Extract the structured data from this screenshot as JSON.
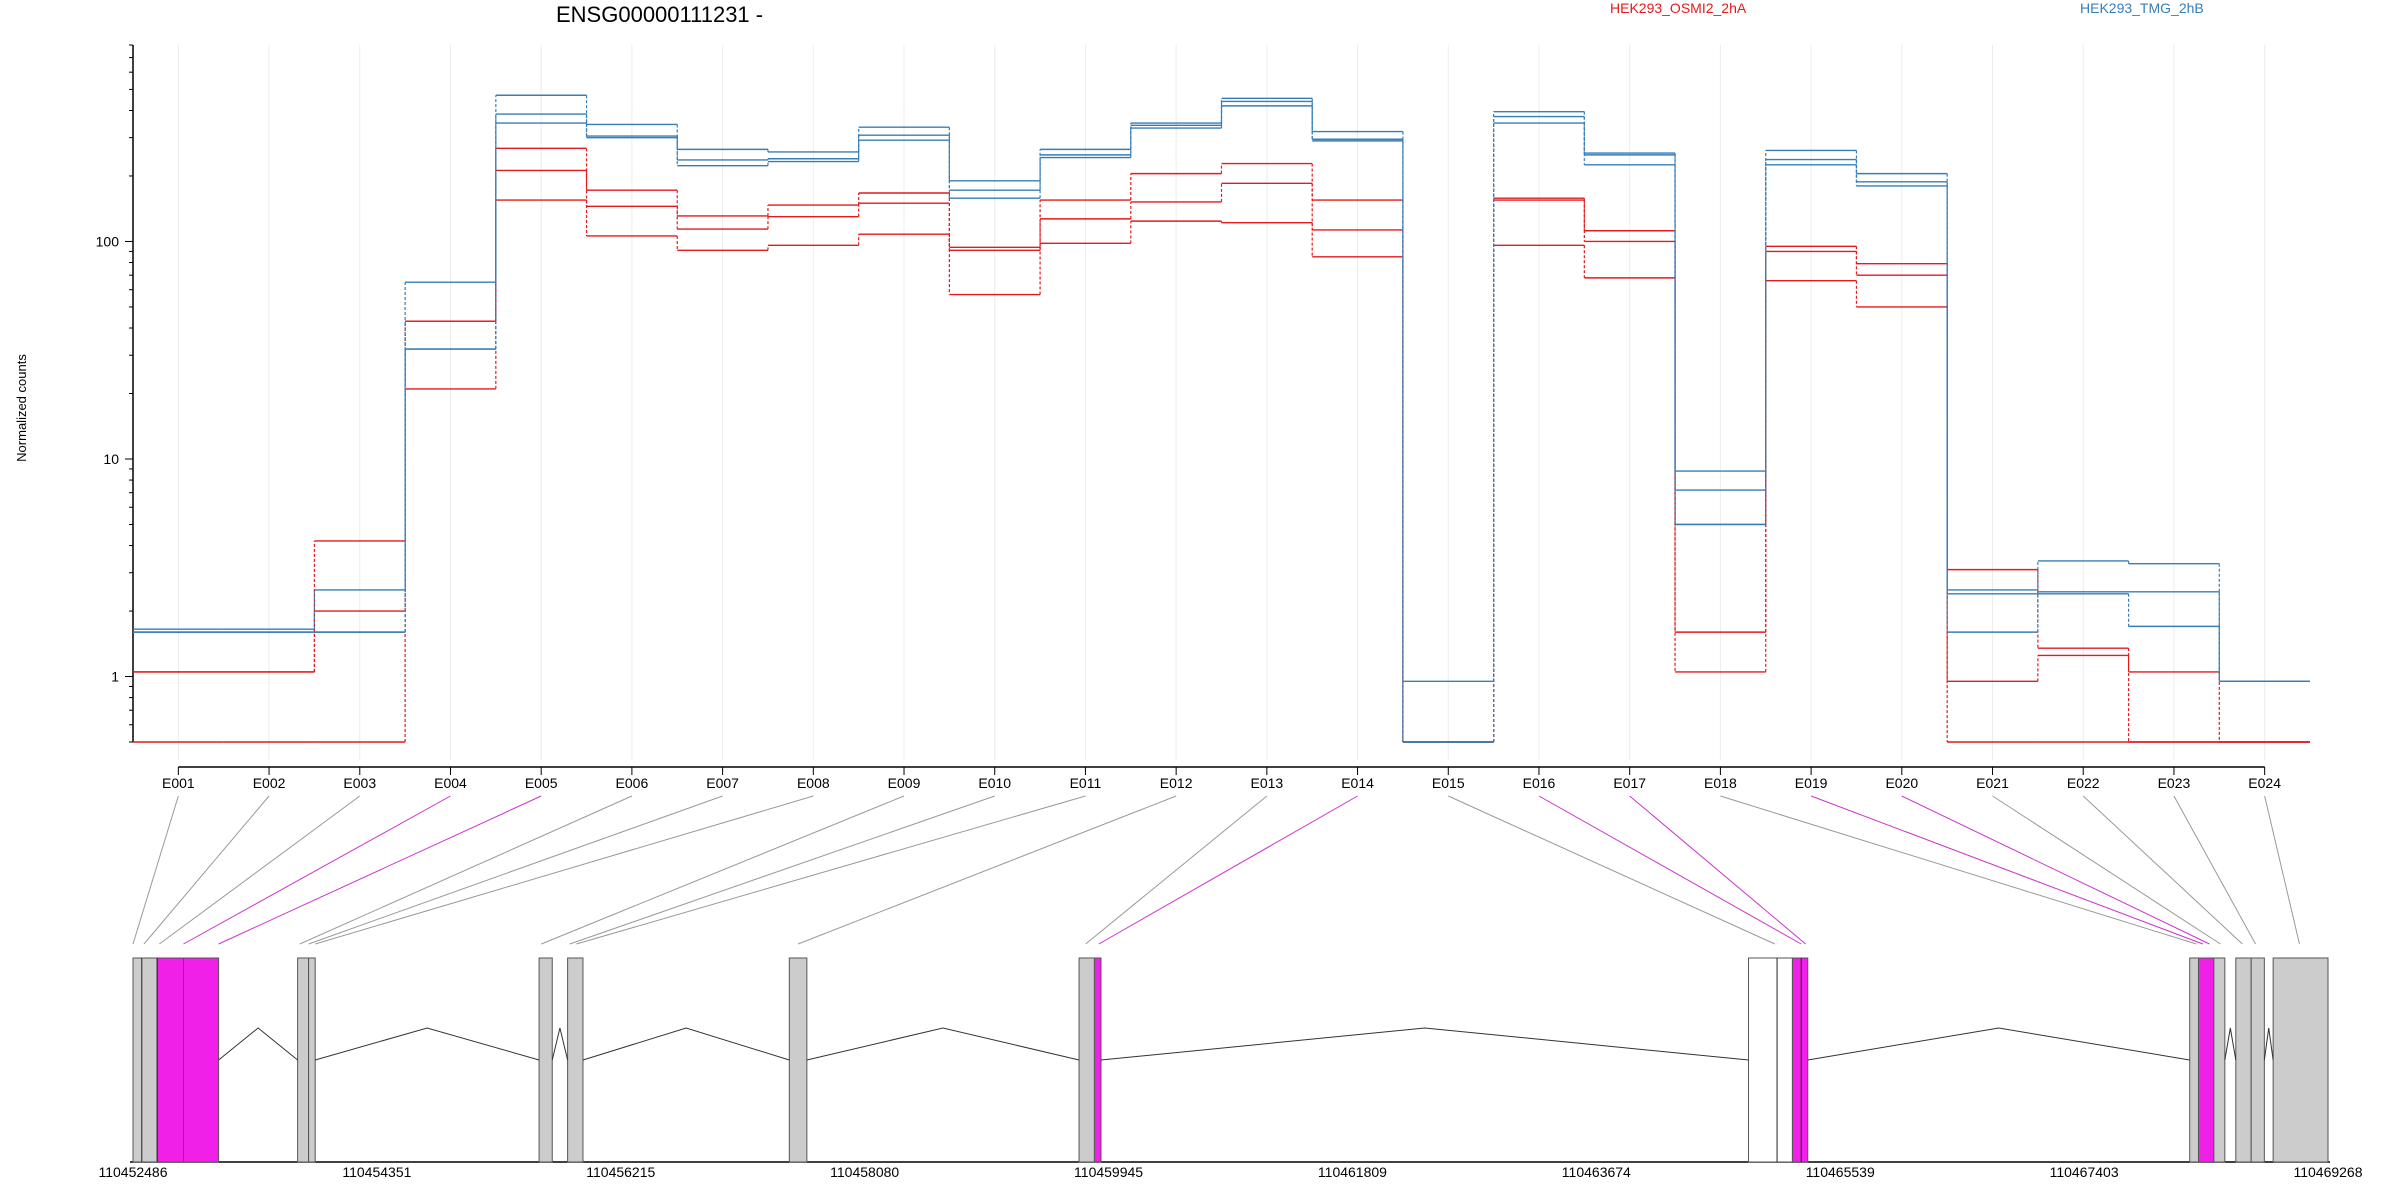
{
  "chart_data": {
    "type": "line",
    "title": "ENSG00000111231 -",
    "ylabel": "Normalized counts",
    "yscale": "log",
    "ylim": [
      0.5,
      800
    ],
    "y_ticks": [
      1,
      10,
      100
    ],
    "y_tick_labels": [
      "1",
      "10",
      "100"
    ],
    "grid": "vertical",
    "legend_placement": "top-right",
    "categories": [
      "E001",
      "E002",
      "E003",
      "E004",
      "E005",
      "E006",
      "E007",
      "E008",
      "E009",
      "E010",
      "E011",
      "E012",
      "E013",
      "E014",
      "E015",
      "E016",
      "E017",
      "E018",
      "E019",
      "E020",
      "E021",
      "E022",
      "E023",
      "E024"
    ],
    "groups": [
      {
        "name": "HEK293_OSMI2_2hA",
        "color": "#e41a1c"
      },
      {
        "name": "HEK293_TMG_2hB",
        "color": "#377eb8"
      }
    ],
    "series": [
      {
        "group": 0,
        "values": [
          0.5,
          0.5,
          0.5,
          21,
          155,
          106,
          91,
          96,
          108,
          57,
          98,
          124,
          122,
          85,
          0.5,
          96,
          68,
          1.05,
          66,
          50,
          0.95,
          1.25,
          1.05,
          0.5
        ]
      },
      {
        "group": 0,
        "values": [
          1.05,
          1.05,
          2,
          43,
          212,
          145,
          114,
          130,
          150,
          91,
          127,
          152,
          185,
          113,
          0.5,
          155,
          100,
          1.6,
          90,
          70,
          0.5,
          0.5,
          0.5,
          0.5
        ]
      },
      {
        "group": 0,
        "values": [
          1.05,
          1.05,
          4.2,
          43,
          268,
          172,
          131,
          147,
          167,
          94,
          155,
          205,
          228,
          155,
          0.5,
          158,
          112,
          5,
          95,
          79,
          3.1,
          1.35,
          0.5,
          0.5
        ]
      },
      {
        "group": 1,
        "values": [
          1.6,
          1.6,
          1.6,
          32,
          350,
          305,
          223,
          233,
          292,
          158,
          243,
          332,
          420,
          290,
          0.95,
          350,
          225,
          5,
          225,
          180,
          1.6,
          2.4,
          1.7,
          0.95
        ]
      },
      {
        "group": 1,
        "values": [
          1.6,
          1.6,
          1.6,
          32,
          385,
          300,
          237,
          240,
          308,
          172,
          250,
          342,
          440,
          295,
          0.5,
          375,
          250,
          7.2,
          238,
          188,
          2.4,
          2.45,
          2.45,
          0.95
        ]
      },
      {
        "group": 1,
        "values": [
          1.65,
          1.65,
          2.5,
          65,
          470,
          345,
          265,
          258,
          335,
          190,
          265,
          350,
          455,
          320,
          0.5,
          395,
          255,
          8.8,
          262,
          205,
          2.5,
          3.4,
          3.3,
          0.95
        ]
      }
    ],
    "mapping_colors": [
      "#999999",
      "#999999",
      "#999999",
      "#cc33cc",
      "#cc33cc",
      "#999999",
      "#999999",
      "#999999",
      "#999999",
      "#999999",
      "#999999",
      "#999999",
      "#999999",
      "#cc33cc",
      "#999999",
      "#cc33cc",
      "#cc33cc",
      "#999999",
      "#cc33cc",
      "#cc33cc",
      "#999999",
      "#999999",
      "#999999",
      "#999999"
    ],
    "gene_model": {
      "x_range": [
        110452486,
        110469268
      ],
      "coordinate_ticks": [
        "110452486",
        "110454351",
        "110456215",
        "110458080",
        "110459945",
        "110461809",
        "110463674",
        "110465539",
        "110467403",
        "110469268"
      ],
      "exon_fill": "#cccccc",
      "highlight_fill": "#f020e8"
    }
  }
}
